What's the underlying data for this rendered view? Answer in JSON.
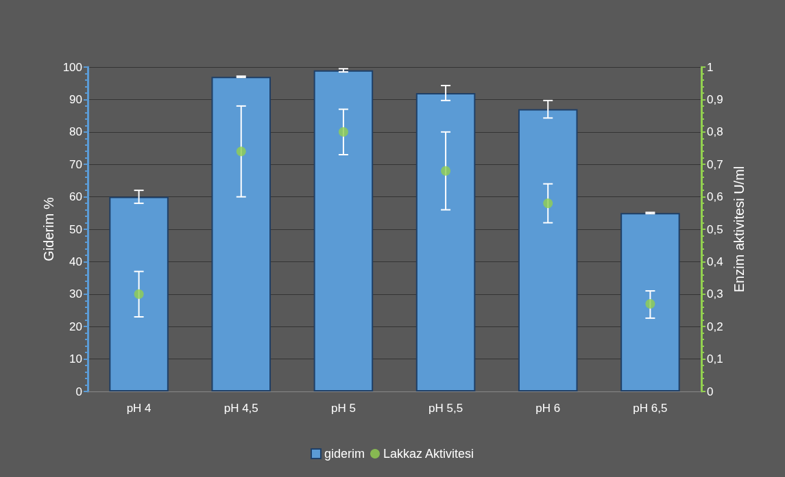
{
  "chart_data": {
    "type": "bar",
    "ylabel": "Giderim %",
    "y2label": "Enzim aktivitesi U/ml",
    "categories": [
      "pH 4",
      "pH 4,5",
      "pH 5",
      "pH 5,5",
      "pH 6",
      "pH 6,5"
    ],
    "series": [
      {
        "name": "giderim",
        "color": "#5b9bd5",
        "values": [
          60,
          97,
          99,
          92,
          87,
          55
        ],
        "errors": [
          [
            58,
            62
          ],
          [
            96.8,
            97.2
          ],
          [
            98.5,
            99.5
          ],
          [
            89.7,
            94.3
          ],
          [
            84.3,
            89.7
          ],
          [
            54.8,
            55.2
          ]
        ]
      },
      {
        "name": "Lakkaz Aktivitesi",
        "type": "scatter",
        "axis": "y2",
        "color": "#92d050",
        "values": [
          0.3,
          0.74,
          0.8,
          0.68,
          0.58,
          0.27
        ],
        "errors": [
          [
            0.23,
            0.37
          ],
          [
            0.6,
            0.88
          ],
          [
            0.73,
            0.87
          ],
          [
            0.56,
            0.8
          ],
          [
            0.52,
            0.64
          ],
          [
            0.226,
            0.31
          ]
        ]
      }
    ],
    "ylim": [
      0,
      100
    ],
    "yticks": [
      0,
      10,
      20,
      30,
      40,
      50,
      60,
      70,
      80,
      90,
      100
    ],
    "y2lim": [
      0,
      1
    ],
    "y2ticks": [
      0,
      {
        "value": 0.1,
        "label": "0,1"
      },
      {
        "value": 0.2,
        "label": "0,2"
      },
      {
        "value": 0.3,
        "label": "0,3"
      },
      {
        "value": 0.4,
        "label": "0,4"
      },
      {
        "value": 0.5,
        "label": "0,5"
      },
      {
        "value": 0.6,
        "label": "0,6"
      },
      {
        "value": 0.7,
        "label": "0,7"
      },
      {
        "value": 0.8,
        "label": "0,8"
      },
      {
        "value": 0.9,
        "label": "0,9"
      },
      {
        "value": 1,
        "label": "1"
      }
    ],
    "grid": "y",
    "legend": "bottom",
    "marker": "circle"
  }
}
